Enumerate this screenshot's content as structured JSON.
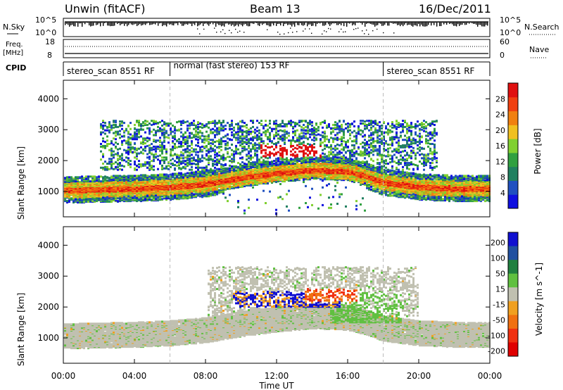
{
  "header": {
    "left": "Unwin (fitACF)",
    "center": "Beam 13",
    "right": "16/Dec/2011"
  },
  "panels": {
    "nsky": {
      "label": "N.Sky",
      "tick_top": "10^5",
      "tick_bottom": "10^0",
      "right_label": "N.Search"
    },
    "freq": {
      "label_line1": "Freq.",
      "label_line2": "[MHz]",
      "ticks": [
        "18",
        "8"
      ],
      "right_ticks": [
        "60",
        "0"
      ],
      "right_label": "Nave"
    },
    "cpid": {
      "label": "CPID",
      "segments": [
        {
          "label": "stereo_scan 8551 RF",
          "start_hour": 0,
          "end_hour": 6
        },
        {
          "label": "normal (fast stereo) 153 RF",
          "start_hour": 6,
          "end_hour": 18
        },
        {
          "label": "stereo_scan 8551 RF",
          "start_hour": 18,
          "end_hour": 24
        }
      ]
    }
  },
  "axes": {
    "xlabel": "Time UT",
    "xticks": [
      "00:00",
      "04:00",
      "08:00",
      "12:00",
      "16:00",
      "20:00",
      "00:00"
    ],
    "ylabel": "Slant Range [km]",
    "yticks": [
      "1000",
      "2000",
      "3000",
      "4000"
    ]
  },
  "power_colorbar": {
    "label": "Power [dB]",
    "ticks": [
      "4",
      "8",
      "12",
      "16",
      "20",
      "24",
      "28"
    ],
    "colors": [
      "#1010e0",
      "#2050c0",
      "#208060",
      "#30a040",
      "#80d030",
      "#f0c020",
      "#f08010",
      "#f04010",
      "#e01010"
    ]
  },
  "velocity_colorbar": {
    "label": "Velocity [m s^-1]",
    "ticks": [
      "200",
      "100",
      "50",
      "15",
      "-15",
      "-50",
      "-100",
      "-200"
    ],
    "colors": [
      "#1010d0",
      "#2050a0",
      "#208040",
      "#60c040",
      "#c0c0b0",
      "#f0a020",
      "#f07010",
      "#f03010",
      "#e00000"
    ]
  },
  "chart_data": {
    "type": "heatmap",
    "x_range_hours": [
      0,
      24
    ],
    "ylim": [
      180,
      4600
    ],
    "power": {
      "main_band_center_km": [
        [
          0,
          1050
        ],
        [
          4,
          1100
        ],
        [
          6,
          1150
        ],
        [
          8,
          1250
        ],
        [
          10,
          1450
        ],
        [
          12,
          1600
        ],
        [
          14,
          1700
        ],
        [
          16,
          1650
        ],
        [
          17,
          1500
        ],
        [
          18,
          1300
        ],
        [
          20,
          1150
        ],
        [
          22,
          1100
        ],
        [
          24,
          1100
        ]
      ],
      "high_patch": {
        "start_hour": 11.0,
        "end_hour": 14.5,
        "range_km": [
          2100,
          2500
        ],
        "power_db": 28
      }
    },
    "velocity": {
      "negative_patch": {
        "start_hour": 9.5,
        "end_hour": 15.5,
        "range_km": [
          2000,
          2500
        ],
        "velocity": 200
      },
      "positive_patch": {
        "start_hour": 13.5,
        "end_hour": 16.5,
        "range_km": [
          2200,
          2600
        ],
        "velocity": -100
      }
    }
  }
}
